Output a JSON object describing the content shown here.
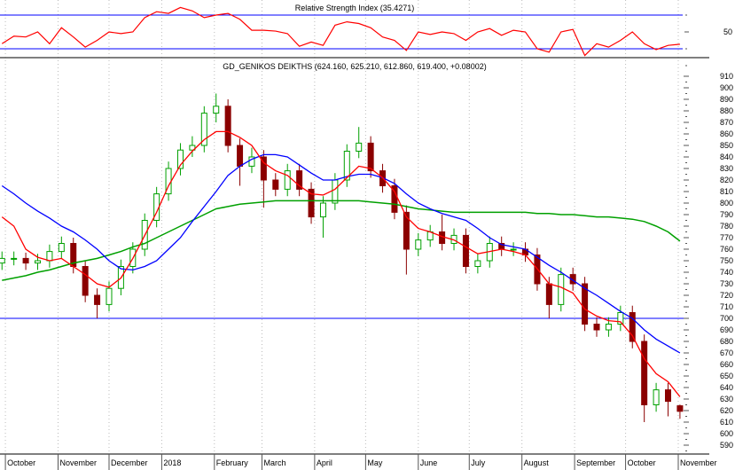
{
  "chart_data": [
    {
      "type": "line",
      "title": "Relative Strength Index (35.4271)",
      "ylim": [
        0,
        100
      ],
      "yticks": [
        50
      ],
      "reference_lines": [
        70,
        30
      ],
      "colors": {
        "line": "#ff0000",
        "reference": "#0000ff"
      },
      "dates": [
        "2017-09-29",
        "2017-10-06",
        "2017-10-13",
        "2017-10-20",
        "2017-10-27",
        "2017-11-03",
        "2017-11-10",
        "2017-11-17",
        "2017-11-24",
        "2017-12-01",
        "2017-12-08",
        "2017-12-15",
        "2017-12-22",
        "2017-12-29",
        "2018-01-05",
        "2018-01-12",
        "2018-01-19",
        "2018-01-26",
        "2018-02-02",
        "2018-02-09",
        "2018-02-16",
        "2018-02-23",
        "2018-03-02",
        "2018-03-09",
        "2018-03-16",
        "2018-03-23",
        "2018-03-30",
        "2018-04-06",
        "2018-04-13",
        "2018-04-20",
        "2018-04-27",
        "2018-05-04",
        "2018-05-11",
        "2018-05-18",
        "2018-05-25",
        "2018-06-01",
        "2018-06-08",
        "2018-06-15",
        "2018-06-22",
        "2018-06-29",
        "2018-07-06",
        "2018-07-13",
        "2018-07-20",
        "2018-07-27",
        "2018-08-03",
        "2018-08-10",
        "2018-08-17",
        "2018-08-24",
        "2018-08-31",
        "2018-09-07",
        "2018-09-14",
        "2018-09-21",
        "2018-09-28",
        "2018-10-05",
        "2018-10-12",
        "2018-10-19",
        "2018-10-26",
        "2018-11-02"
      ],
      "values": [
        36,
        45,
        44,
        50,
        36,
        55,
        44,
        32,
        40,
        50,
        48,
        50,
        67,
        74,
        72,
        79,
        75,
        67,
        70,
        72,
        65,
        52,
        52,
        51,
        48,
        33,
        38,
        34,
        58,
        62,
        60,
        55,
        44,
        40,
        28,
        50,
        47,
        50,
        48,
        40,
        50,
        54,
        46,
        52,
        50,
        30,
        26,
        50,
        53,
        22,
        36,
        32,
        40,
        50,
        36,
        29,
        34,
        35.4271
      ]
    },
    {
      "type": "candlestick",
      "title": "GD_GENIKOS DEIKTHS (624.160, 625.210, 612.860, 619.400, +0.08002)",
      "ylim": [
        585,
        915
      ],
      "yticks": [
        590,
        600,
        610,
        620,
        630,
        640,
        650,
        660,
        670,
        680,
        690,
        700,
        710,
        720,
        730,
        740,
        750,
        760,
        770,
        780,
        790,
        800,
        810,
        820,
        830,
        840,
        850,
        860,
        870,
        880,
        890,
        900,
        910
      ],
      "reference_lines": [
        700
      ],
      "colors": {
        "up": "#00a000",
        "down": "#8b0000",
        "ma_short": "#ff0000",
        "ma_mid": "#0000ff",
        "ma_long": "#00a000",
        "reference": "#0000ff"
      },
      "xticks": [
        {
          "date": "2017-10-01",
          "label": "October"
        },
        {
          "date": "2017-11-01",
          "label": "November"
        },
        {
          "date": "2017-12-01",
          "label": "December"
        },
        {
          "date": "2018-01-01",
          "label": "2018"
        },
        {
          "date": "2018-02-01",
          "label": "February"
        },
        {
          "date": "2018-03-01",
          "label": "March"
        },
        {
          "date": "2018-04-01",
          "label": "April"
        },
        {
          "date": "2018-05-01",
          "label": "May"
        },
        {
          "date": "2018-06-01",
          "label": "June"
        },
        {
          "date": "2018-07-01",
          "label": "July"
        },
        {
          "date": "2018-08-01",
          "label": "August"
        },
        {
          "date": "2018-09-01",
          "label": "September"
        },
        {
          "date": "2018-10-01",
          "label": "October"
        },
        {
          "date": "2018-11-01",
          "label": "November"
        }
      ],
      "open": [
        748,
        752,
        752,
        748,
        750,
        758,
        765,
        745,
        720,
        712,
        726,
        745,
        760,
        785,
        808,
        830,
        846,
        850,
        878,
        884,
        850,
        832,
        840,
        820,
        812,
        828,
        812,
        788,
        800,
        820,
        845,
        852,
        828,
        815,
        792,
        760,
        768,
        775,
        765,
        772,
        745,
        750,
        765,
        760,
        760,
        755,
        730,
        712,
        738,
        730,
        695,
        690,
        695,
        705,
        680,
        625,
        638,
        624.16
      ],
      "high": [
        758,
        758,
        757,
        756,
        764,
        771,
        770,
        750,
        726,
        732,
        751,
        766,
        791,
        814,
        836,
        852,
        858,
        884,
        895,
        890,
        856,
        848,
        846,
        826,
        834,
        834,
        818,
        806,
        826,
        851,
        866,
        858,
        834,
        821,
        798,
        774,
        781,
        790,
        778,
        778,
        756,
        771,
        771,
        766,
        766,
        761,
        736,
        744,
        744,
        736,
        701,
        701,
        711,
        711,
        686,
        644,
        644,
        625.21
      ],
      "low": [
        742,
        746,
        742,
        742,
        744,
        752,
        739,
        714,
        700,
        706,
        720,
        739,
        754,
        779,
        802,
        824,
        840,
        844,
        870,
        844,
        815,
        826,
        796,
        806,
        806,
        806,
        782,
        770,
        794,
        814,
        839,
        822,
        809,
        786,
        738,
        754,
        762,
        759,
        759,
        739,
        739,
        744,
        754,
        754,
        749,
        724,
        700,
        706,
        724,
        689,
        684,
        684,
        689,
        674,
        610,
        619,
        615,
        612.86
      ],
      "close": [
        752,
        752,
        748,
        750,
        758,
        765,
        745,
        720,
        712,
        726,
        745,
        760,
        785,
        808,
        830,
        846,
        850,
        878,
        884,
        850,
        832,
        840,
        820,
        812,
        828,
        812,
        788,
        800,
        820,
        845,
        852,
        828,
        815,
        792,
        760,
        768,
        775,
        765,
        772,
        745,
        750,
        765,
        760,
        760,
        755,
        730,
        712,
        738,
        730,
        695,
        690,
        695,
        705,
        680,
        625,
        638,
        628,
        619.4
      ],
      "ma_short": [
        788,
        780,
        760,
        753,
        750,
        752,
        745,
        738,
        730,
        727,
        735,
        752,
        772,
        792,
        815,
        833,
        845,
        855,
        862,
        862,
        857,
        850,
        835,
        828,
        824,
        815,
        808,
        807,
        812,
        822,
        832,
        830,
        822,
        810,
        788,
        778,
        775,
        771,
        768,
        762,
        756,
        758,
        760,
        758,
        755,
        743,
        730,
        727,
        722,
        708,
        702,
        698,
        697,
        685,
        665,
        652,
        645,
        632
      ],
      "ma_mid": [
        815,
        808,
        800,
        793,
        787,
        780,
        775,
        768,
        760,
        750,
        743,
        742,
        745,
        750,
        760,
        770,
        784,
        797,
        810,
        824,
        832,
        838,
        842,
        842,
        840,
        833,
        826,
        820,
        820,
        823,
        825,
        825,
        822,
        817,
        808,
        800,
        795,
        791,
        788,
        785,
        778,
        770,
        764,
        762,
        760,
        753,
        746,
        740,
        733,
        726,
        720,
        713,
        706,
        700,
        690,
        682,
        676,
        670
      ],
      "ma_long": [
        733,
        735,
        737,
        740,
        742,
        745,
        748,
        750,
        752,
        755,
        758,
        762,
        765,
        770,
        775,
        780,
        785,
        790,
        795,
        797,
        799,
        800,
        801,
        802,
        802,
        802,
        802,
        802,
        802,
        802,
        802,
        801,
        800,
        799,
        797,
        795,
        794,
        793,
        792,
        792,
        792,
        792,
        792,
        792,
        792,
        791,
        791,
        790,
        790,
        789,
        788,
        788,
        787,
        786,
        784,
        780,
        775,
        767
      ]
    }
  ]
}
